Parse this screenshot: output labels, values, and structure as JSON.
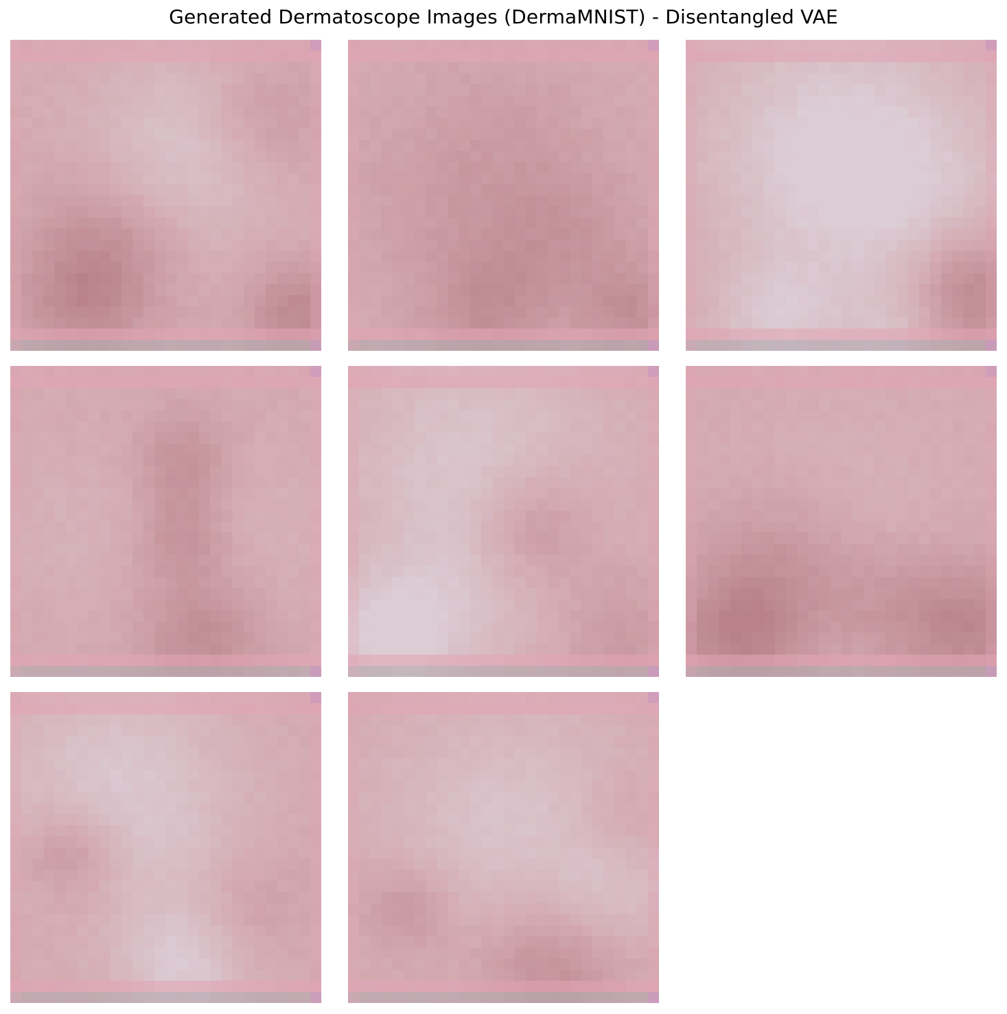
{
  "figure": {
    "title": "Generated Dermatoscope Images (DermaMNIST) - Disentangled VAE"
  },
  "palette": {
    "base_pink": "#d4aab1",
    "pale_lilac": "#dccdd5",
    "lesion_rose": "#b9828a",
    "edge_pink": "#e3a4b5",
    "edge_grey": "#b4aab0"
  },
  "samples": [
    {
      "index": 1,
      "tone": "rose with central dark blob"
    },
    {
      "index": 2,
      "tone": "uniform rose"
    },
    {
      "index": 3,
      "tone": "pale lilac, dark lower-right"
    },
    {
      "index": 4,
      "tone": "rose, vertical dark band"
    },
    {
      "index": 5,
      "tone": "pale, diagonal dark streak"
    },
    {
      "index": 6,
      "tone": "rose, dark lower corners"
    },
    {
      "index": 7,
      "tone": "pale top, mottled rose"
    },
    {
      "index": 8,
      "tone": "pale center, dark lower area"
    }
  ]
}
